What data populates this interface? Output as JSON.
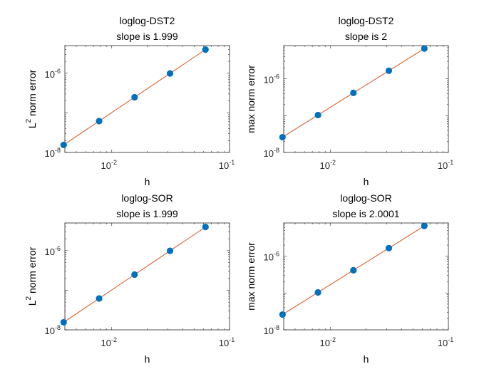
{
  "colors": {
    "marker": "#0072BD",
    "line": "#D95319",
    "axes": "#262626"
  },
  "chart_data": [
    {
      "type": "scatter",
      "title": [
        "loglog-DST2",
        "slope is 1.999"
      ],
      "xlabel": "h",
      "ylabel": {
        "base": "L",
        "sup": "2",
        "rest": " norm error"
      },
      "xscale": "log",
      "yscale": "log",
      "xlim": [
        0.004,
        0.1
      ],
      "ylim": [
        1e-08,
        5e-06
      ],
      "xticks": [
        {
          "v": 0.01,
          "base": "10",
          "exp": "-2"
        },
        {
          "v": 0.1,
          "base": "10",
          "exp": "-1"
        }
      ],
      "yticks": [
        {
          "v": 1e-08,
          "base": "10",
          "exp": "-8"
        },
        {
          "v": 1e-06,
          "base": "10",
          "exp": "-6"
        }
      ],
      "x": [
        0.00390625,
        0.0078125,
        0.015625,
        0.03125,
        0.0625
      ],
      "y": [
        1.55e-08,
        6.2e-08,
        2.48e-07,
        9.9e-07,
        3.96e-06
      ]
    },
    {
      "type": "scatter",
      "title": [
        "loglog-DST2",
        "slope is 2"
      ],
      "xlabel": "h",
      "ylabel": {
        "base": "max norm error",
        "sup": "",
        "rest": ""
      },
      "xscale": "log",
      "yscale": "log",
      "xlim": [
        0.004,
        0.1
      ],
      "ylim": [
        1e-08,
        8e-06
      ],
      "xticks": [
        {
          "v": 0.01,
          "base": "10",
          "exp": "-2"
        },
        {
          "v": 0.1,
          "base": "10",
          "exp": "-1"
        }
      ],
      "yticks": [
        {
          "v": 1e-08,
          "base": "10",
          "exp": "-8"
        },
        {
          "v": 1e-06,
          "base": "10",
          "exp": "-6"
        }
      ],
      "x": [
        0.00390625,
        0.0078125,
        0.015625,
        0.03125,
        0.0625
      ],
      "y": [
        2.6e-08,
        1.04e-07,
        4.16e-07,
        1.66e-06,
        6.65e-06
      ]
    },
    {
      "type": "scatter",
      "title": [
        "loglog-SOR",
        "slope is 1.999"
      ],
      "xlabel": "h",
      "ylabel": {
        "base": "L",
        "sup": "2",
        "rest": " norm error"
      },
      "xscale": "log",
      "yscale": "log",
      "xlim": [
        0.004,
        0.1
      ],
      "ylim": [
        1e-08,
        5e-06
      ],
      "xticks": [
        {
          "v": 0.01,
          "base": "10",
          "exp": "-2"
        },
        {
          "v": 0.1,
          "base": "10",
          "exp": "-1"
        }
      ],
      "yticks": [
        {
          "v": 1e-08,
          "base": "10",
          "exp": "-8"
        },
        {
          "v": 1e-06,
          "base": "10",
          "exp": "-6"
        }
      ],
      "x": [
        0.00390625,
        0.0078125,
        0.015625,
        0.03125,
        0.0625
      ],
      "y": [
        1.55e-08,
        6.2e-08,
        2.48e-07,
        9.9e-07,
        3.96e-06
      ]
    },
    {
      "type": "scatter",
      "title": [
        "loglog-SOR",
        "slope is 2.0001"
      ],
      "xlabel": "h",
      "ylabel": {
        "base": "max norm error",
        "sup": "",
        "rest": ""
      },
      "xscale": "log",
      "yscale": "log",
      "xlim": [
        0.004,
        0.1
      ],
      "ylim": [
        1e-08,
        8e-06
      ],
      "xticks": [
        {
          "v": 0.01,
          "base": "10",
          "exp": "-2"
        },
        {
          "v": 0.1,
          "base": "10",
          "exp": "-1"
        }
      ],
      "yticks": [
        {
          "v": 1e-08,
          "base": "10",
          "exp": "-8"
        },
        {
          "v": 1e-06,
          "base": "10",
          "exp": "-6"
        }
      ],
      "x": [
        0.00390625,
        0.0078125,
        0.015625,
        0.03125,
        0.0625
      ],
      "y": [
        2.6e-08,
        1.04e-07,
        4.16e-07,
        1.66e-06,
        6.65e-06
      ]
    }
  ]
}
